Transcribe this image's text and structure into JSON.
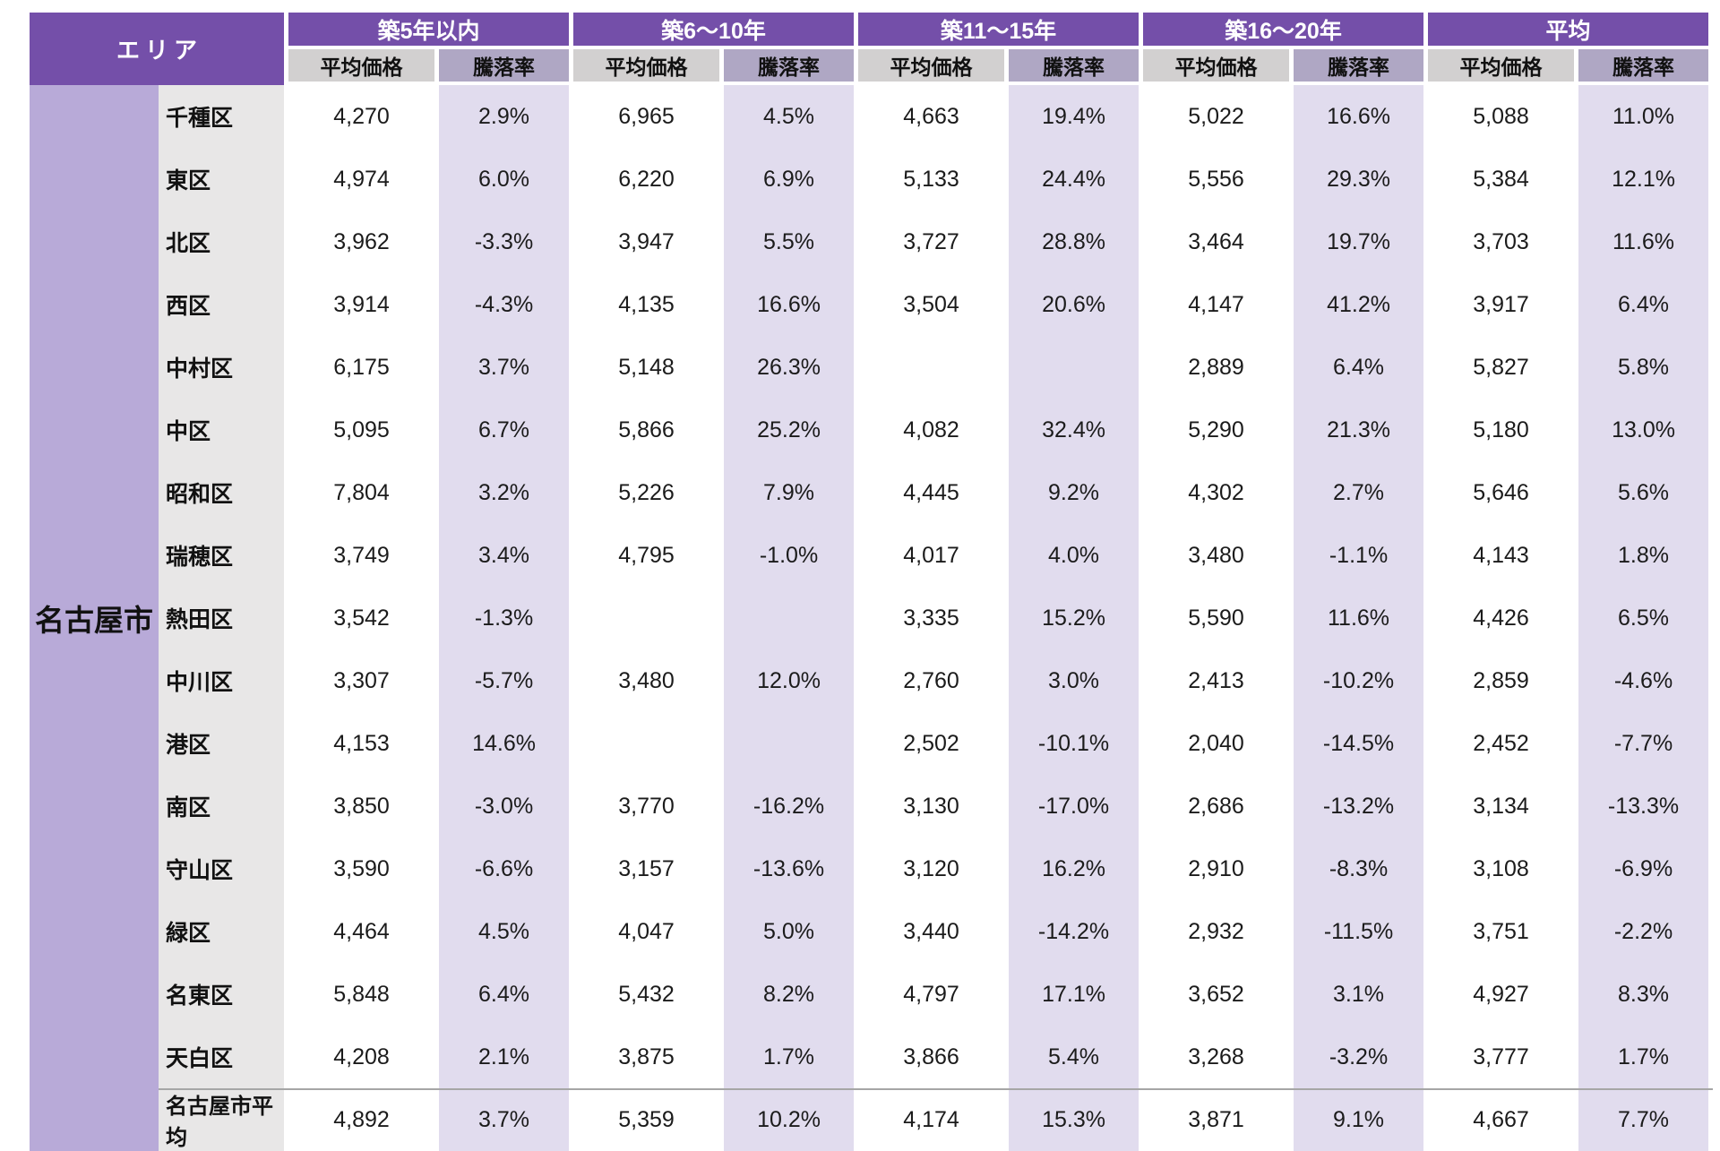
{
  "table": {
    "area_header": "エリア",
    "city": "名古屋市",
    "groups": [
      {
        "label": "築5年以内"
      },
      {
        "label": "築6～10年"
      },
      {
        "label": "築11～15年"
      },
      {
        "label": "築16～20年"
      },
      {
        "label": "平均"
      }
    ],
    "sub_headers": {
      "price": "平均価格",
      "rate": "騰落率"
    },
    "rows": [
      {
        "ward": "千種区",
        "values": [
          "4,270",
          "2.9%",
          "6,965",
          "4.5%",
          "4,663",
          "19.4%",
          "5,022",
          "16.6%",
          "5,088",
          "11.0%"
        ]
      },
      {
        "ward": "東区",
        "values": [
          "4,974",
          "6.0%",
          "6,220",
          "6.9%",
          "5,133",
          "24.4%",
          "5,556",
          "29.3%",
          "5,384",
          "12.1%"
        ]
      },
      {
        "ward": "北区",
        "values": [
          "3,962",
          "-3.3%",
          "3,947",
          "5.5%",
          "3,727",
          "28.8%",
          "3,464",
          "19.7%",
          "3,703",
          "11.6%"
        ]
      },
      {
        "ward": "西区",
        "values": [
          "3,914",
          "-4.3%",
          "4,135",
          "16.6%",
          "3,504",
          "20.6%",
          "4,147",
          "41.2%",
          "3,917",
          "6.4%"
        ]
      },
      {
        "ward": "中村区",
        "values": [
          "6,175",
          "3.7%",
          "5,148",
          "26.3%",
          "",
          "",
          "2,889",
          "6.4%",
          "5,827",
          "5.8%"
        ]
      },
      {
        "ward": "中区",
        "values": [
          "5,095",
          "6.7%",
          "5,866",
          "25.2%",
          "4,082",
          "32.4%",
          "5,290",
          "21.3%",
          "5,180",
          "13.0%"
        ]
      },
      {
        "ward": "昭和区",
        "values": [
          "7,804",
          "3.2%",
          "5,226",
          "7.9%",
          "4,445",
          "9.2%",
          "4,302",
          "2.7%",
          "5,646",
          "5.6%"
        ]
      },
      {
        "ward": "瑞穂区",
        "values": [
          "3,749",
          "3.4%",
          "4,795",
          "-1.0%",
          "4,017",
          "4.0%",
          "3,480",
          "-1.1%",
          "4,143",
          "1.8%"
        ]
      },
      {
        "ward": "熱田区",
        "values": [
          "3,542",
          "-1.3%",
          "",
          "",
          "3,335",
          "15.2%",
          "5,590",
          "11.6%",
          "4,426",
          "6.5%"
        ]
      },
      {
        "ward": "中川区",
        "values": [
          "3,307",
          "-5.7%",
          "3,480",
          "12.0%",
          "2,760",
          "3.0%",
          "2,413",
          "-10.2%",
          "2,859",
          "-4.6%"
        ]
      },
      {
        "ward": "港区",
        "values": [
          "4,153",
          "14.6%",
          "",
          "",
          "2,502",
          "-10.1%",
          "2,040",
          "-14.5%",
          "2,452",
          "-7.7%"
        ]
      },
      {
        "ward": "南区",
        "values": [
          "3,850",
          "-3.0%",
          "3,770",
          "-16.2%",
          "3,130",
          "-17.0%",
          "2,686",
          "-13.2%",
          "3,134",
          "-13.3%"
        ]
      },
      {
        "ward": "守山区",
        "values": [
          "3,590",
          "-6.6%",
          "3,157",
          "-13.6%",
          "3,120",
          "16.2%",
          "2,910",
          "-8.3%",
          "3,108",
          "-6.9%"
        ]
      },
      {
        "ward": "緑区",
        "values": [
          "4,464",
          "4.5%",
          "4,047",
          "5.0%",
          "3,440",
          "-14.2%",
          "2,932",
          "-11.5%",
          "3,751",
          "-2.2%"
        ]
      },
      {
        "ward": "名東区",
        "values": [
          "5,848",
          "6.4%",
          "5,432",
          "8.2%",
          "4,797",
          "17.1%",
          "3,652",
          "3.1%",
          "4,927",
          "8.3%"
        ]
      },
      {
        "ward": "天白区",
        "values": [
          "4,208",
          "2.1%",
          "3,875",
          "1.7%",
          "3,866",
          "5.4%",
          "3,268",
          "-3.2%",
          "3,777",
          "1.7%"
        ]
      },
      {
        "ward": "名古屋市平均",
        "is_footer": true,
        "values": [
          "4,892",
          "3.7%",
          "5,359",
          "10.2%",
          "4,174",
          "15.3%",
          "3,871",
          "9.1%",
          "4,667",
          "7.7%"
        ]
      }
    ],
    "colors": {
      "header_purple": "#744FA9",
      "city_purple": "#B8AAD8",
      "ward_gray": "#E8E7E7",
      "sub_price_gray": "#D2D0D0",
      "sub_rate_purple": "#AFA7C4",
      "rate_lavender": "#E1DCEE",
      "separator_gray": "#A6A6A6"
    }
  },
  "chart_data": {
    "type": "table",
    "row_header": "エリア",
    "city": "名古屋市",
    "column_groups": [
      "築5年以内",
      "築6～10年",
      "築11～15年",
      "築16～20年",
      "平均"
    ],
    "sub_columns": [
      "平均価格",
      "騰落率"
    ],
    "columns": [
      "築5年以内 平均価格",
      "築5年以内 騰落率",
      "築6～10年 平均価格",
      "築6～10年 騰落率",
      "築11～15年 平均価格",
      "築11～15年 騰落率",
      "築16～20年 平均価格",
      "築16～20年 騰落率",
      "平均 平均価格",
      "平均 騰落率"
    ],
    "rate_unit": "%",
    "rows": [
      {
        "area": "千種区",
        "values": [
          4270,
          2.9,
          6965,
          4.5,
          4663,
          19.4,
          5022,
          16.6,
          5088,
          11.0
        ]
      },
      {
        "area": "東区",
        "values": [
          4974,
          6.0,
          6220,
          6.9,
          5133,
          24.4,
          5556,
          29.3,
          5384,
          12.1
        ]
      },
      {
        "area": "北区",
        "values": [
          3962,
          -3.3,
          3947,
          5.5,
          3727,
          28.8,
          3464,
          19.7,
          3703,
          11.6
        ]
      },
      {
        "area": "西区",
        "values": [
          3914,
          -4.3,
          4135,
          16.6,
          3504,
          20.6,
          4147,
          41.2,
          3917,
          6.4
        ]
      },
      {
        "area": "中村区",
        "values": [
          6175,
          3.7,
          5148,
          26.3,
          null,
          null,
          2889,
          6.4,
          5827,
          5.8
        ]
      },
      {
        "area": "中区",
        "values": [
          5095,
          6.7,
          5866,
          25.2,
          4082,
          32.4,
          5290,
          21.3,
          5180,
          13.0
        ]
      },
      {
        "area": "昭和区",
        "values": [
          7804,
          3.2,
          5226,
          7.9,
          4445,
          9.2,
          4302,
          2.7,
          5646,
          5.6
        ]
      },
      {
        "area": "瑞穂区",
        "values": [
          3749,
          3.4,
          4795,
          -1.0,
          4017,
          4.0,
          3480,
          -1.1,
          4143,
          1.8
        ]
      },
      {
        "area": "熱田区",
        "values": [
          3542,
          -1.3,
          null,
          null,
          3335,
          15.2,
          5590,
          11.6,
          4426,
          6.5
        ]
      },
      {
        "area": "中川区",
        "values": [
          3307,
          -5.7,
          3480,
          12.0,
          2760,
          3.0,
          2413,
          -10.2,
          2859,
          -4.6
        ]
      },
      {
        "area": "港区",
        "values": [
          4153,
          14.6,
          null,
          null,
          2502,
          -10.1,
          2040,
          -14.5,
          2452,
          -7.7
        ]
      },
      {
        "area": "南区",
        "values": [
          3850,
          -3.0,
          3770,
          -16.2,
          3130,
          -17.0,
          2686,
          -13.2,
          3134,
          -13.3
        ]
      },
      {
        "area": "守山区",
        "values": [
          3590,
          -6.6,
          3157,
          -13.6,
          3120,
          16.2,
          2910,
          -8.3,
          3108,
          -6.9
        ]
      },
      {
        "area": "緑区",
        "values": [
          4464,
          4.5,
          4047,
          5.0,
          3440,
          -14.2,
          2932,
          -11.5,
          3751,
          -2.2
        ]
      },
      {
        "area": "名東区",
        "values": [
          5848,
          6.4,
          5432,
          8.2,
          4797,
          17.1,
          3652,
          3.1,
          4927,
          8.3
        ]
      },
      {
        "area": "天白区",
        "values": [
          4208,
          2.1,
          3875,
          1.7,
          3866,
          5.4,
          3268,
          -3.2,
          3777,
          1.7
        ]
      },
      {
        "area": "名古屋市平均",
        "values": [
          4892,
          3.7,
          5359,
          10.2,
          4174,
          15.3,
          3871,
          9.1,
          4667,
          7.7
        ]
      }
    ]
  }
}
